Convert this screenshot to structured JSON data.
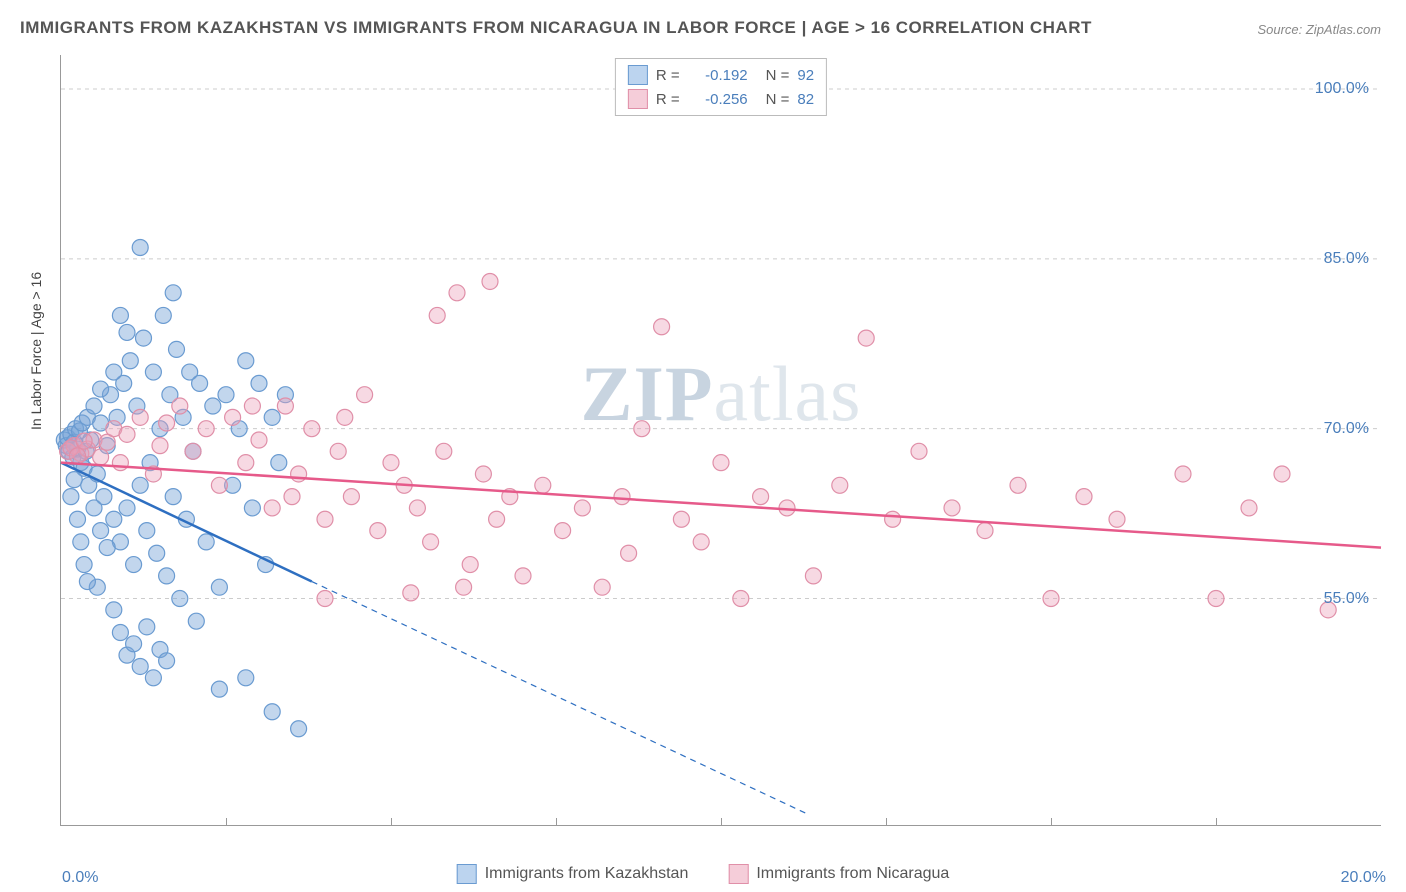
{
  "title": "IMMIGRANTS FROM KAZAKHSTAN VS IMMIGRANTS FROM NICARAGUA IN LABOR FORCE | AGE > 16 CORRELATION CHART",
  "source": "Source: ZipAtlas.com",
  "ylabel": "In Labor Force | Age > 16",
  "watermark_bold": "ZIP",
  "watermark_light": "atlas",
  "chart": {
    "type": "scatter",
    "xlim": [
      0,
      20
    ],
    "ylim": [
      35,
      103
    ],
    "x_ticks_minor": [
      2.5,
      5,
      7.5,
      10,
      12.5,
      15,
      17.5
    ],
    "y_gridlines": [
      55,
      70,
      85,
      100
    ],
    "y_tick_labels": [
      "55.0%",
      "70.0%",
      "85.0%",
      "100.0%"
    ],
    "x_tick_left": "0.0%",
    "x_tick_right": "20.0%",
    "background_color": "#ffffff",
    "grid_color": "#cccccc",
    "series": [
      {
        "name": "Immigrants from Kazakhstan",
        "color_fill": "rgba(120,165,215,0.45)",
        "color_stroke": "#6a9bd1",
        "swatch_fill": "#bcd4ef",
        "swatch_border": "#6a9bd1",
        "line_color": "#2e6fc1",
        "R": "-0.192",
        "N": "92",
        "trend": {
          "x1": 0,
          "y1": 67,
          "x2": 3.8,
          "y2": 56.5,
          "dash_x1": 3.8,
          "dash_y1": 56.5,
          "dash_x2": 11.3,
          "dash_y2": 36
        },
        "points": [
          [
            0.05,
            69
          ],
          [
            0.08,
            68.5
          ],
          [
            0.1,
            69.2
          ],
          [
            0.12,
            68
          ],
          [
            0.15,
            69.5
          ],
          [
            0.18,
            67.5
          ],
          [
            0.2,
            68.8
          ],
          [
            0.22,
            70
          ],
          [
            0.25,
            68.2
          ],
          [
            0.28,
            69.8
          ],
          [
            0.3,
            67
          ],
          [
            0.32,
            70.5
          ],
          [
            0.35,
            66.5
          ],
          [
            0.38,
            68
          ],
          [
            0.4,
            71
          ],
          [
            0.42,
            65
          ],
          [
            0.45,
            69
          ],
          [
            0.5,
            72
          ],
          [
            0.55,
            66
          ],
          [
            0.6,
            70.5
          ],
          [
            0.65,
            64
          ],
          [
            0.7,
            68.5
          ],
          [
            0.75,
            73
          ],
          [
            0.8,
            62
          ],
          [
            0.85,
            71
          ],
          [
            0.9,
            60
          ],
          [
            0.95,
            74
          ],
          [
            1.0,
            63
          ],
          [
            1.05,
            76
          ],
          [
            1.1,
            58
          ],
          [
            1.15,
            72
          ],
          [
            1.2,
            65
          ],
          [
            1.25,
            78
          ],
          [
            1.3,
            61
          ],
          [
            1.35,
            67
          ],
          [
            1.4,
            75
          ],
          [
            1.45,
            59
          ],
          [
            1.5,
            70
          ],
          [
            1.55,
            80
          ],
          [
            1.6,
            57
          ],
          [
            1.65,
            73
          ],
          [
            1.7,
            64
          ],
          [
            1.75,
            77
          ],
          [
            1.8,
            55
          ],
          [
            1.85,
            71
          ],
          [
            1.9,
            62
          ],
          [
            1.95,
            75
          ],
          [
            2.0,
            68
          ],
          [
            2.05,
            53
          ],
          [
            2.1,
            74
          ],
          [
            2.2,
            60
          ],
          [
            2.3,
            72
          ],
          [
            2.4,
            56
          ],
          [
            2.5,
            73
          ],
          [
            2.6,
            65
          ],
          [
            2.7,
            70
          ],
          [
            2.8,
            76
          ],
          [
            2.9,
            63
          ],
          [
            3.0,
            74
          ],
          [
            3.1,
            58
          ],
          [
            3.2,
            71
          ],
          [
            3.3,
            67
          ],
          [
            3.4,
            73
          ],
          [
            0.5,
            63
          ],
          [
            0.6,
            61
          ],
          [
            0.7,
            59.5
          ],
          [
            0.55,
            56
          ],
          [
            0.8,
            54
          ],
          [
            0.9,
            52
          ],
          [
            1.0,
            50
          ],
          [
            1.1,
            51
          ],
          [
            1.2,
            49
          ],
          [
            1.3,
            52.5
          ],
          [
            1.4,
            48
          ],
          [
            1.5,
            50.5
          ],
          [
            1.6,
            49.5
          ],
          [
            0.4,
            56.5
          ],
          [
            0.35,
            58
          ],
          [
            0.3,
            60
          ],
          [
            0.25,
            62
          ],
          [
            1.2,
            86
          ],
          [
            1.7,
            82
          ],
          [
            0.9,
            80
          ],
          [
            1.0,
            78.5
          ],
          [
            2.8,
            48
          ],
          [
            2.4,
            47
          ],
          [
            3.2,
            45
          ],
          [
            3.6,
            43.5
          ],
          [
            0.15,
            64
          ],
          [
            0.2,
            65.5
          ],
          [
            0.6,
            73.5
          ],
          [
            0.8,
            75
          ]
        ]
      },
      {
        "name": "Immigrants from Nicaragua",
        "color_fill": "rgba(235,160,185,0.40)",
        "color_stroke": "#e08fa8",
        "swatch_fill": "#f5cdd9",
        "swatch_border": "#e08fa8",
        "line_color": "#e65a8a",
        "R": "-0.256",
        "N": "82",
        "trend": {
          "x1": 0,
          "y1": 67,
          "x2": 20,
          "y2": 59.5
        },
        "points": [
          [
            0.1,
            68
          ],
          [
            0.2,
            68.5
          ],
          [
            0.3,
            67.8
          ],
          [
            0.4,
            68.2
          ],
          [
            0.5,
            69
          ],
          [
            0.6,
            67.5
          ],
          [
            0.7,
            68.8
          ],
          [
            0.8,
            70
          ],
          [
            0.9,
            67
          ],
          [
            1.0,
            69.5
          ],
          [
            1.2,
            71
          ],
          [
            1.4,
            66
          ],
          [
            1.6,
            70.5
          ],
          [
            1.8,
            72
          ],
          [
            2.0,
            68
          ],
          [
            2.2,
            70
          ],
          [
            2.4,
            65
          ],
          [
            2.6,
            71
          ],
          [
            2.8,
            67
          ],
          [
            3.0,
            69
          ],
          [
            3.2,
            63
          ],
          [
            3.4,
            72
          ],
          [
            3.6,
            66
          ],
          [
            3.8,
            70
          ],
          [
            4.0,
            62
          ],
          [
            4.2,
            68
          ],
          [
            4.4,
            64
          ],
          [
            4.6,
            73
          ],
          [
            4.8,
            61
          ],
          [
            5.0,
            67
          ],
          [
            5.2,
            65
          ],
          [
            5.4,
            63
          ],
          [
            5.6,
            60
          ],
          [
            5.8,
            68
          ],
          [
            6.0,
            82
          ],
          [
            6.2,
            58
          ],
          [
            6.4,
            66
          ],
          [
            6.6,
            62
          ],
          [
            6.8,
            64
          ],
          [
            7.0,
            57
          ],
          [
            7.3,
            65
          ],
          [
            7.6,
            61
          ],
          [
            5.7,
            80
          ],
          [
            8.2,
            56
          ],
          [
            8.5,
            64
          ],
          [
            8.8,
            70
          ],
          [
            9.1,
            79
          ],
          [
            9.4,
            62
          ],
          [
            9.7,
            60
          ],
          [
            10.0,
            67
          ],
          [
            10.3,
            55
          ],
          [
            10.6,
            64
          ],
          [
            11.0,
            63
          ],
          [
            11.4,
            57
          ],
          [
            11.8,
            65
          ],
          [
            12.2,
            78
          ],
          [
            12.6,
            62
          ],
          [
            13.0,
            68
          ],
          [
            13.5,
            63
          ],
          [
            14.0,
            61
          ],
          [
            14.5,
            65
          ],
          [
            15.0,
            55
          ],
          [
            15.5,
            64
          ],
          [
            16.0,
            62
          ],
          [
            17.0,
            66
          ],
          [
            17.5,
            55
          ],
          [
            18.0,
            63
          ],
          [
            18.5,
            66
          ],
          [
            19.2,
            54
          ],
          [
            4.0,
            55
          ],
          [
            5.3,
            55.5
          ],
          [
            6.5,
            83
          ],
          [
            3.5,
            64
          ],
          [
            2.9,
            72
          ],
          [
            1.5,
            68.5
          ],
          [
            0.15,
            68.3
          ],
          [
            0.25,
            67.6
          ],
          [
            0.35,
            68.9
          ],
          [
            7.9,
            63
          ],
          [
            8.6,
            59
          ],
          [
            4.3,
            71
          ],
          [
            6.1,
            56
          ]
        ]
      }
    ]
  },
  "legend_labels": {
    "r_prefix": "R =",
    "n_prefix": "N ="
  }
}
